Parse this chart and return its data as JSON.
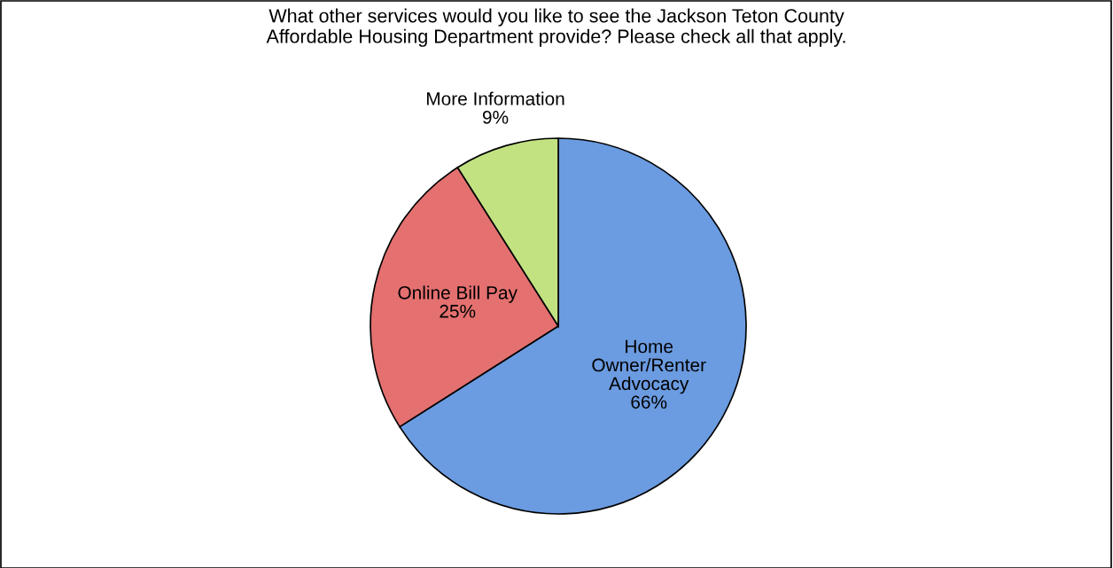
{
  "chart_data": {
    "type": "pie",
    "title": "What other services would you like to see the Jackson Teton County\nAffordable Housing Department provide? Please check all that apply.",
    "categories": [
      "Home\nOwner/Renter\nAdvocacy",
      "Online Bill Pay",
      "More Information"
    ],
    "values": [
      66,
      25,
      9
    ],
    "colors": [
      "#6b9be0",
      "#e47070",
      "#c2e282"
    ],
    "value_labels": [
      "66%",
      "25%",
      "9%"
    ]
  }
}
